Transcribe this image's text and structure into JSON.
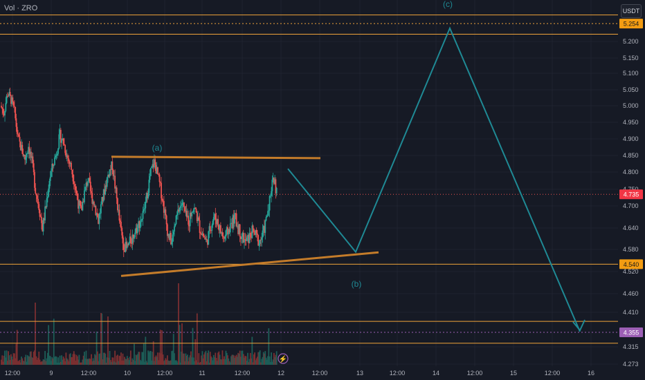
{
  "header": {
    "label": "Vol · ZRO"
  },
  "axis": {
    "unit": "USDT"
  },
  "colors": {
    "background": "#161a25",
    "up": "#26a69a",
    "down": "#ef5350",
    "wave": "#1f8a95",
    "triangle": "#c47c2a",
    "level": "#f0a43a",
    "price_tag": "#f23645",
    "support_tag": "#f39c12",
    "target_tag": "#9c5fb5"
  },
  "chart_data": {
    "type": "candlestick",
    "symbol": "ZRO",
    "quote": "USDT",
    "y_ticks": [
      "5.200",
      "5.150",
      "5.100",
      "5.050",
      "5.000",
      "4.950",
      "4.900",
      "4.850",
      "4.800",
      "4.750",
      "4.700",
      "4.640",
      "4.580",
      "4.520",
      "4.460",
      "4.410",
      "4.315",
      "4.273"
    ],
    "x_ticks": [
      "12:00",
      "9",
      "12:00",
      "10",
      "12:00",
      "11",
      "12:00",
      "12",
      "12:00",
      "13",
      "12:00",
      "14",
      "12:00",
      "15",
      "12:00",
      "16"
    ],
    "price_tags": [
      {
        "label": "5.254",
        "kind": "level"
      },
      {
        "label": "4.735",
        "kind": "last"
      },
      {
        "label": "4.540",
        "kind": "level"
      },
      {
        "label": "4.355",
        "kind": "target"
      }
    ],
    "horizontal_levels": [
      5.28,
      5.254,
      5.222,
      4.54,
      4.385,
      4.355,
      4.325
    ],
    "close_path": [
      5.0,
      4.98,
      5.04,
      5.02,
      4.98,
      4.9,
      4.87,
      4.84,
      4.88,
      4.83,
      4.75,
      4.7,
      4.64,
      4.7,
      4.78,
      4.82,
      4.86,
      4.91,
      4.89,
      4.85,
      4.82,
      4.78,
      4.72,
      4.68,
      4.74,
      4.78,
      4.73,
      4.7,
      4.66,
      4.71,
      4.76,
      4.8,
      4.82,
      4.74,
      4.66,
      4.6,
      4.58,
      4.6,
      4.62,
      4.64,
      4.66,
      4.68,
      4.74,
      4.8,
      4.83,
      4.79,
      4.74,
      4.68,
      4.62,
      4.6,
      4.65,
      4.69,
      4.71,
      4.67,
      4.66,
      4.7,
      4.68,
      4.64,
      4.62,
      4.6,
      4.64,
      4.67,
      4.66,
      4.63,
      4.61,
      4.63,
      4.65,
      4.67,
      4.64,
      4.62,
      4.6,
      4.61,
      4.63,
      4.62,
      4.6,
      4.62,
      4.66,
      4.72,
      4.79,
      4.74
    ],
    "wave_labels": [
      {
        "text": "(a)"
      },
      {
        "text": "(b)"
      },
      {
        "text": "(c)"
      }
    ],
    "wave_path": [
      {
        "t": "12 02:00",
        "price": 4.81
      },
      {
        "t": "12 22:30",
        "price": 4.573
      },
      {
        "t": "14 05:00",
        "price": 5.24
      },
      {
        "t": "15 21:00",
        "price": 4.357
      }
    ],
    "triangle_top": [
      {
        "t": "9 21:00",
        "price": 4.846
      },
      {
        "t": "12 13:30",
        "price": 4.842
      }
    ],
    "triangle_bottom": [
      {
        "t": "10 00:00",
        "price": 4.508
      },
      {
        "t": "13 00:00",
        "price": 4.572
      }
    ]
  }
}
